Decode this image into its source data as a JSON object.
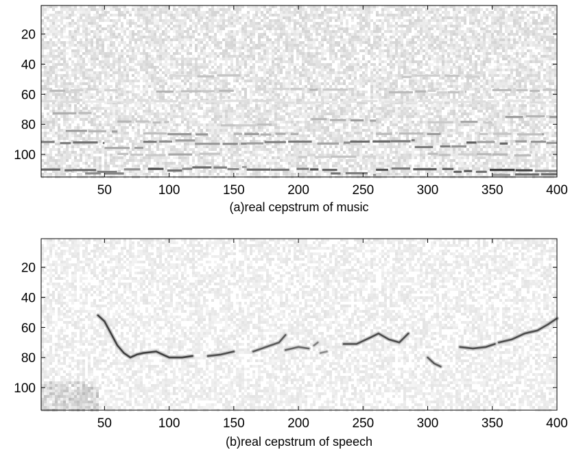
{
  "chart_data": [
    {
      "type": "heatmap",
      "xlabel": "(a)real cepstrum of music",
      "xlim": [
        1,
        400
      ],
      "ylim": [
        1,
        115
      ],
      "y_reversed": true,
      "x_ticks": [
        50,
        100,
        150,
        200,
        250,
        300,
        350,
        400
      ],
      "y_ticks": [
        20,
        40,
        60,
        80,
        100
      ],
      "colormap": "gray-inverted",
      "grid": false,
      "background_noise": 0.08,
      "segments": [
        {
          "x": [
            1,
            25
          ],
          "y": 110,
          "i": 0.8
        },
        {
          "x": [
            25,
            60
          ],
          "y": 111,
          "i": 0.75
        },
        {
          "x": [
            35,
            65
          ],
          "y": 113,
          "i": 0.7
        },
        {
          "x": [
            65,
            110
          ],
          "y": 110,
          "i": 0.75
        },
        {
          "x": [
            110,
            160
          ],
          "y": 109,
          "i": 0.7
        },
        {
          "x": [
            160,
            230
          ],
          "y": 110,
          "i": 0.7
        },
        {
          "x": [
            225,
            260
          ],
          "y": 113,
          "i": 0.7
        },
        {
          "x": [
            260,
            320
          ],
          "y": 110,
          "i": 0.75
        },
        {
          "x": [
            320,
            400
          ],
          "y": 111,
          "i": 0.8
        },
        {
          "x": [
            350,
            400
          ],
          "y": 113,
          "i": 0.7
        },
        {
          "x": [
            1,
            50
          ],
          "y": 92,
          "i": 0.7
        },
        {
          "x": [
            50,
            80
          ],
          "y": 95,
          "i": 0.5
        },
        {
          "x": [
            80,
            120
          ],
          "y": 91,
          "i": 0.55
        },
        {
          "x": [
            120,
            160
          ],
          "y": 93,
          "i": 0.55
        },
        {
          "x": [
            160,
            240
          ],
          "y": 92,
          "i": 0.65
        },
        {
          "x": [
            240,
            290
          ],
          "y": 91,
          "i": 0.6
        },
        {
          "x": [
            290,
            330
          ],
          "y": 95,
          "i": 0.55
        },
        {
          "x": [
            330,
            400
          ],
          "y": 92,
          "i": 0.65
        },
        {
          "x": [
            20,
            60
          ],
          "y": 85,
          "i": 0.4
        },
        {
          "x": [
            80,
            130
          ],
          "y": 86,
          "i": 0.45
        },
        {
          "x": [
            150,
            200
          ],
          "y": 87,
          "i": 0.4
        },
        {
          "x": [
            260,
            310
          ],
          "y": 86,
          "i": 0.45
        },
        {
          "x": [
            340,
            390
          ],
          "y": 87,
          "i": 0.4
        },
        {
          "x": [
            10,
            40
          ],
          "y": 72,
          "i": 0.35
        },
        {
          "x": [
            60,
            100
          ],
          "y": 78,
          "i": 0.4
        },
        {
          "x": [
            140,
            180
          ],
          "y": 80,
          "i": 0.35
        },
        {
          "x": [
            210,
            260
          ],
          "y": 77,
          "i": 0.4
        },
        {
          "x": [
            300,
            350
          ],
          "y": 79,
          "i": 0.35
        },
        {
          "x": [
            360,
            400
          ],
          "y": 75,
          "i": 0.4
        },
        {
          "x": [
            1,
            60
          ],
          "y": 57,
          "i": 0.3
        },
        {
          "x": [
            90,
            150
          ],
          "y": 58,
          "i": 0.3
        },
        {
          "x": [
            180,
            240
          ],
          "y": 57,
          "i": 0.3
        },
        {
          "x": [
            270,
            330
          ],
          "y": 58,
          "i": 0.3
        },
        {
          "x": [
            350,
            400
          ],
          "y": 57,
          "i": 0.3
        },
        {
          "x": [
            100,
            160
          ],
          "y": 48,
          "i": 0.25
        },
        {
          "x": [
            280,
            340
          ],
          "y": 48,
          "i": 0.25
        },
        {
          "x": [
            1,
            400
          ],
          "y": 65,
          "i": 0.15
        },
        {
          "x": [
            60,
            140
          ],
          "y": 100,
          "i": 0.35
        },
        {
          "x": [
            200,
            260
          ],
          "y": 101,
          "i": 0.3
        },
        {
          "x": [
            300,
            380
          ],
          "y": 100,
          "i": 0.3
        }
      ]
    },
    {
      "type": "heatmap",
      "xlabel": "(b)real cepstrum of speech",
      "xlim": [
        1,
        400
      ],
      "ylim": [
        1,
        115
      ],
      "y_reversed": true,
      "x_ticks": [
        50,
        100,
        150,
        200,
        250,
        300,
        350,
        400
      ],
      "y_ticks": [
        20,
        40,
        60,
        80,
        100
      ],
      "colormap": "gray-inverted",
      "grid": false,
      "background_noise": 0.05,
      "contours": [
        {
          "i": 0.75,
          "points": [
            [
              45,
              52
            ],
            [
              50,
              56
            ],
            [
              55,
              64
            ],
            [
              60,
              72
            ],
            [
              65,
              77
            ],
            [
              70,
              80
            ],
            [
              75,
              78
            ],
            [
              80,
              77
            ],
            [
              90,
              76
            ],
            [
              95,
              78
            ],
            [
              100,
              80
            ],
            [
              110,
              80
            ],
            [
              118,
              79
            ]
          ]
        },
        {
          "i": 0.7,
          "points": [
            [
              130,
              79
            ],
            [
              140,
              78
            ],
            [
              150,
              76
            ]
          ]
        },
        {
          "i": 0.65,
          "points": [
            [
              165,
              76
            ],
            [
              175,
              73
            ],
            [
              185,
              70
            ],
            [
              190,
              65
            ]
          ]
        },
        {
          "i": 0.6,
          "points": [
            [
              190,
              75
            ],
            [
              200,
              73
            ],
            [
              208,
              74
            ]
          ]
        },
        {
          "i": 0.5,
          "points": [
            [
              212,
              72
            ],
            [
              215,
              70
            ]
          ]
        },
        {
          "i": 0.45,
          "points": [
            [
              217,
              77
            ],
            [
              222,
              76
            ]
          ]
        },
        {
          "i": 0.7,
          "points": [
            [
              235,
              71
            ],
            [
              245,
              71
            ],
            [
              255,
              67
            ],
            [
              262,
              64
            ],
            [
              270,
              68
            ],
            [
              278,
              70
            ],
            [
              285,
              64
            ]
          ]
        },
        {
          "i": 0.65,
          "points": [
            [
              300,
              80
            ],
            [
              305,
              84
            ],
            [
              310,
              86
            ]
          ]
        },
        {
          "i": 0.7,
          "points": [
            [
              325,
              73
            ],
            [
              335,
              74
            ],
            [
              345,
              73
            ],
            [
              352,
              71
            ]
          ]
        },
        {
          "i": 0.7,
          "points": [
            [
              355,
              70
            ],
            [
              365,
              68
            ],
            [
              375,
              64
            ],
            [
              385,
              62
            ],
            [
              393,
              58
            ],
            [
              400,
              54
            ]
          ]
        }
      ],
      "edge_noise": {
        "x": [
          1,
          45
        ],
        "y": [
          95,
          115
        ],
        "i": 0.18
      }
    }
  ]
}
